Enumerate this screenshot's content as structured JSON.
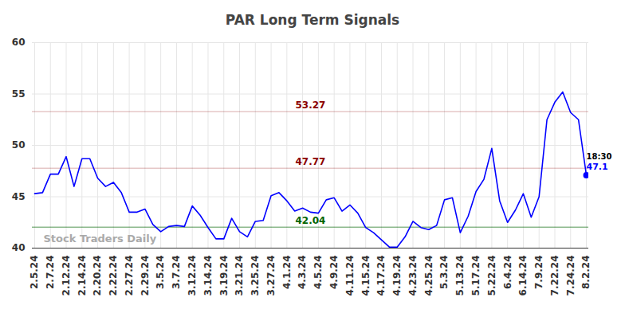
{
  "chart_data": {
    "type": "line",
    "title": "PAR Long Term Signals",
    "categories": [
      "2.5.24",
      null,
      "2.7.24",
      null,
      "2.12.24",
      null,
      "2.14.24",
      null,
      "2.20.24",
      null,
      "2.22.24",
      null,
      "2.27.24",
      null,
      "2.29.24",
      null,
      "3.5.24",
      null,
      "3.7.24",
      null,
      "3.12.24",
      null,
      "3.14.24",
      null,
      "3.19.24",
      null,
      "3.21.24",
      null,
      "3.25.24",
      null,
      "3.27.24",
      null,
      "4.1.24",
      null,
      "4.3.24",
      null,
      "4.5.24",
      null,
      "4.9.24",
      null,
      "4.11.24",
      null,
      "4.15.24",
      null,
      "4.17.24",
      null,
      "4.19.24",
      null,
      "4.23.24",
      null,
      "4.25.24",
      null,
      "5.3.24",
      null,
      "5.13.24",
      null,
      "5.17.24",
      null,
      "5.22.24",
      null,
      "6.4.24",
      null,
      "6.14.24",
      null,
      "7.9.24",
      null,
      "7.22.24",
      null,
      "7.24.24",
      null,
      "8.2.24"
    ],
    "values": [
      45.3,
      45.4,
      47.2,
      47.2,
      48.9,
      46.0,
      48.7,
      48.7,
      46.8,
      46.0,
      46.4,
      45.4,
      43.5,
      43.5,
      43.8,
      42.3,
      41.6,
      42.1,
      42.2,
      42.1,
      44.1,
      43.2,
      42.0,
      40.9,
      40.9,
      42.9,
      41.6,
      41.1,
      42.6,
      42.7,
      45.1,
      45.4,
      44.6,
      43.6,
      43.9,
      43.5,
      43.4,
      44.7,
      44.9,
      43.6,
      44.2,
      43.4,
      42.0,
      41.5,
      40.8,
      40.1,
      40.1,
      41.1,
      42.6,
      42.0,
      41.8,
      42.2,
      44.7,
      44.9,
      41.5,
      43.1,
      45.5,
      46.7,
      49.7,
      44.6,
      42.5,
      43.7,
      45.3,
      43.0,
      45.0,
      52.5,
      54.2,
      55.2,
      53.2,
      52.5,
      47.1
    ],
    "color": "#0000ff",
    "ylim": [
      40,
      60
    ],
    "yticks": [
      40,
      45,
      50,
      55,
      60
    ],
    "grid": true,
    "levels": [
      {
        "value": 53.27,
        "color": "#8b0000"
      },
      {
        "value": 47.77,
        "color": "#8b0000"
      },
      {
        "value": 42.04,
        "color": "#006400"
      }
    ],
    "last_point_time": "18:30",
    "watermark": "Stock Traders Daily"
  }
}
